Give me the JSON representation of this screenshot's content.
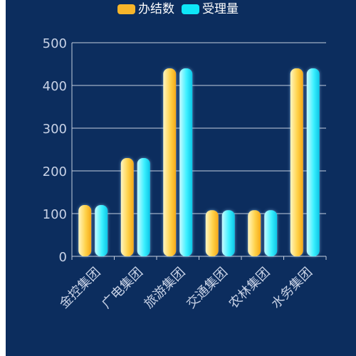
{
  "colors": {
    "background": "#0c2d5e",
    "axis_text": "#c8d2e6",
    "grid": "#c5cfdf",
    "series_1": "#f7b52a",
    "series_1_light": "#fff6c2",
    "series_2": "#0ee6f7",
    "series_2_light": "#c8faff"
  },
  "chart_data": {
    "type": "bar",
    "categories": [
      "金控集团",
      "广电集团",
      "旅游集团",
      "交通集团",
      "农林集团",
      "水务集团"
    ],
    "series": [
      {
        "name": "办结数",
        "color": "#f7b52a",
        "values": [
          120,
          230,
          440,
          108,
          108,
          440
        ]
      },
      {
        "name": "受理量",
        "color": "#0ee6f7",
        "values": [
          120,
          230,
          440,
          108,
          108,
          440
        ]
      }
    ],
    "yticks": [
      "0",
      "100",
      "200",
      "300",
      "400",
      "500"
    ],
    "ylim": [
      0,
      500
    ],
    "grid": true,
    "legend_position": "top-center",
    "xlabel_rotation": "-45deg"
  }
}
